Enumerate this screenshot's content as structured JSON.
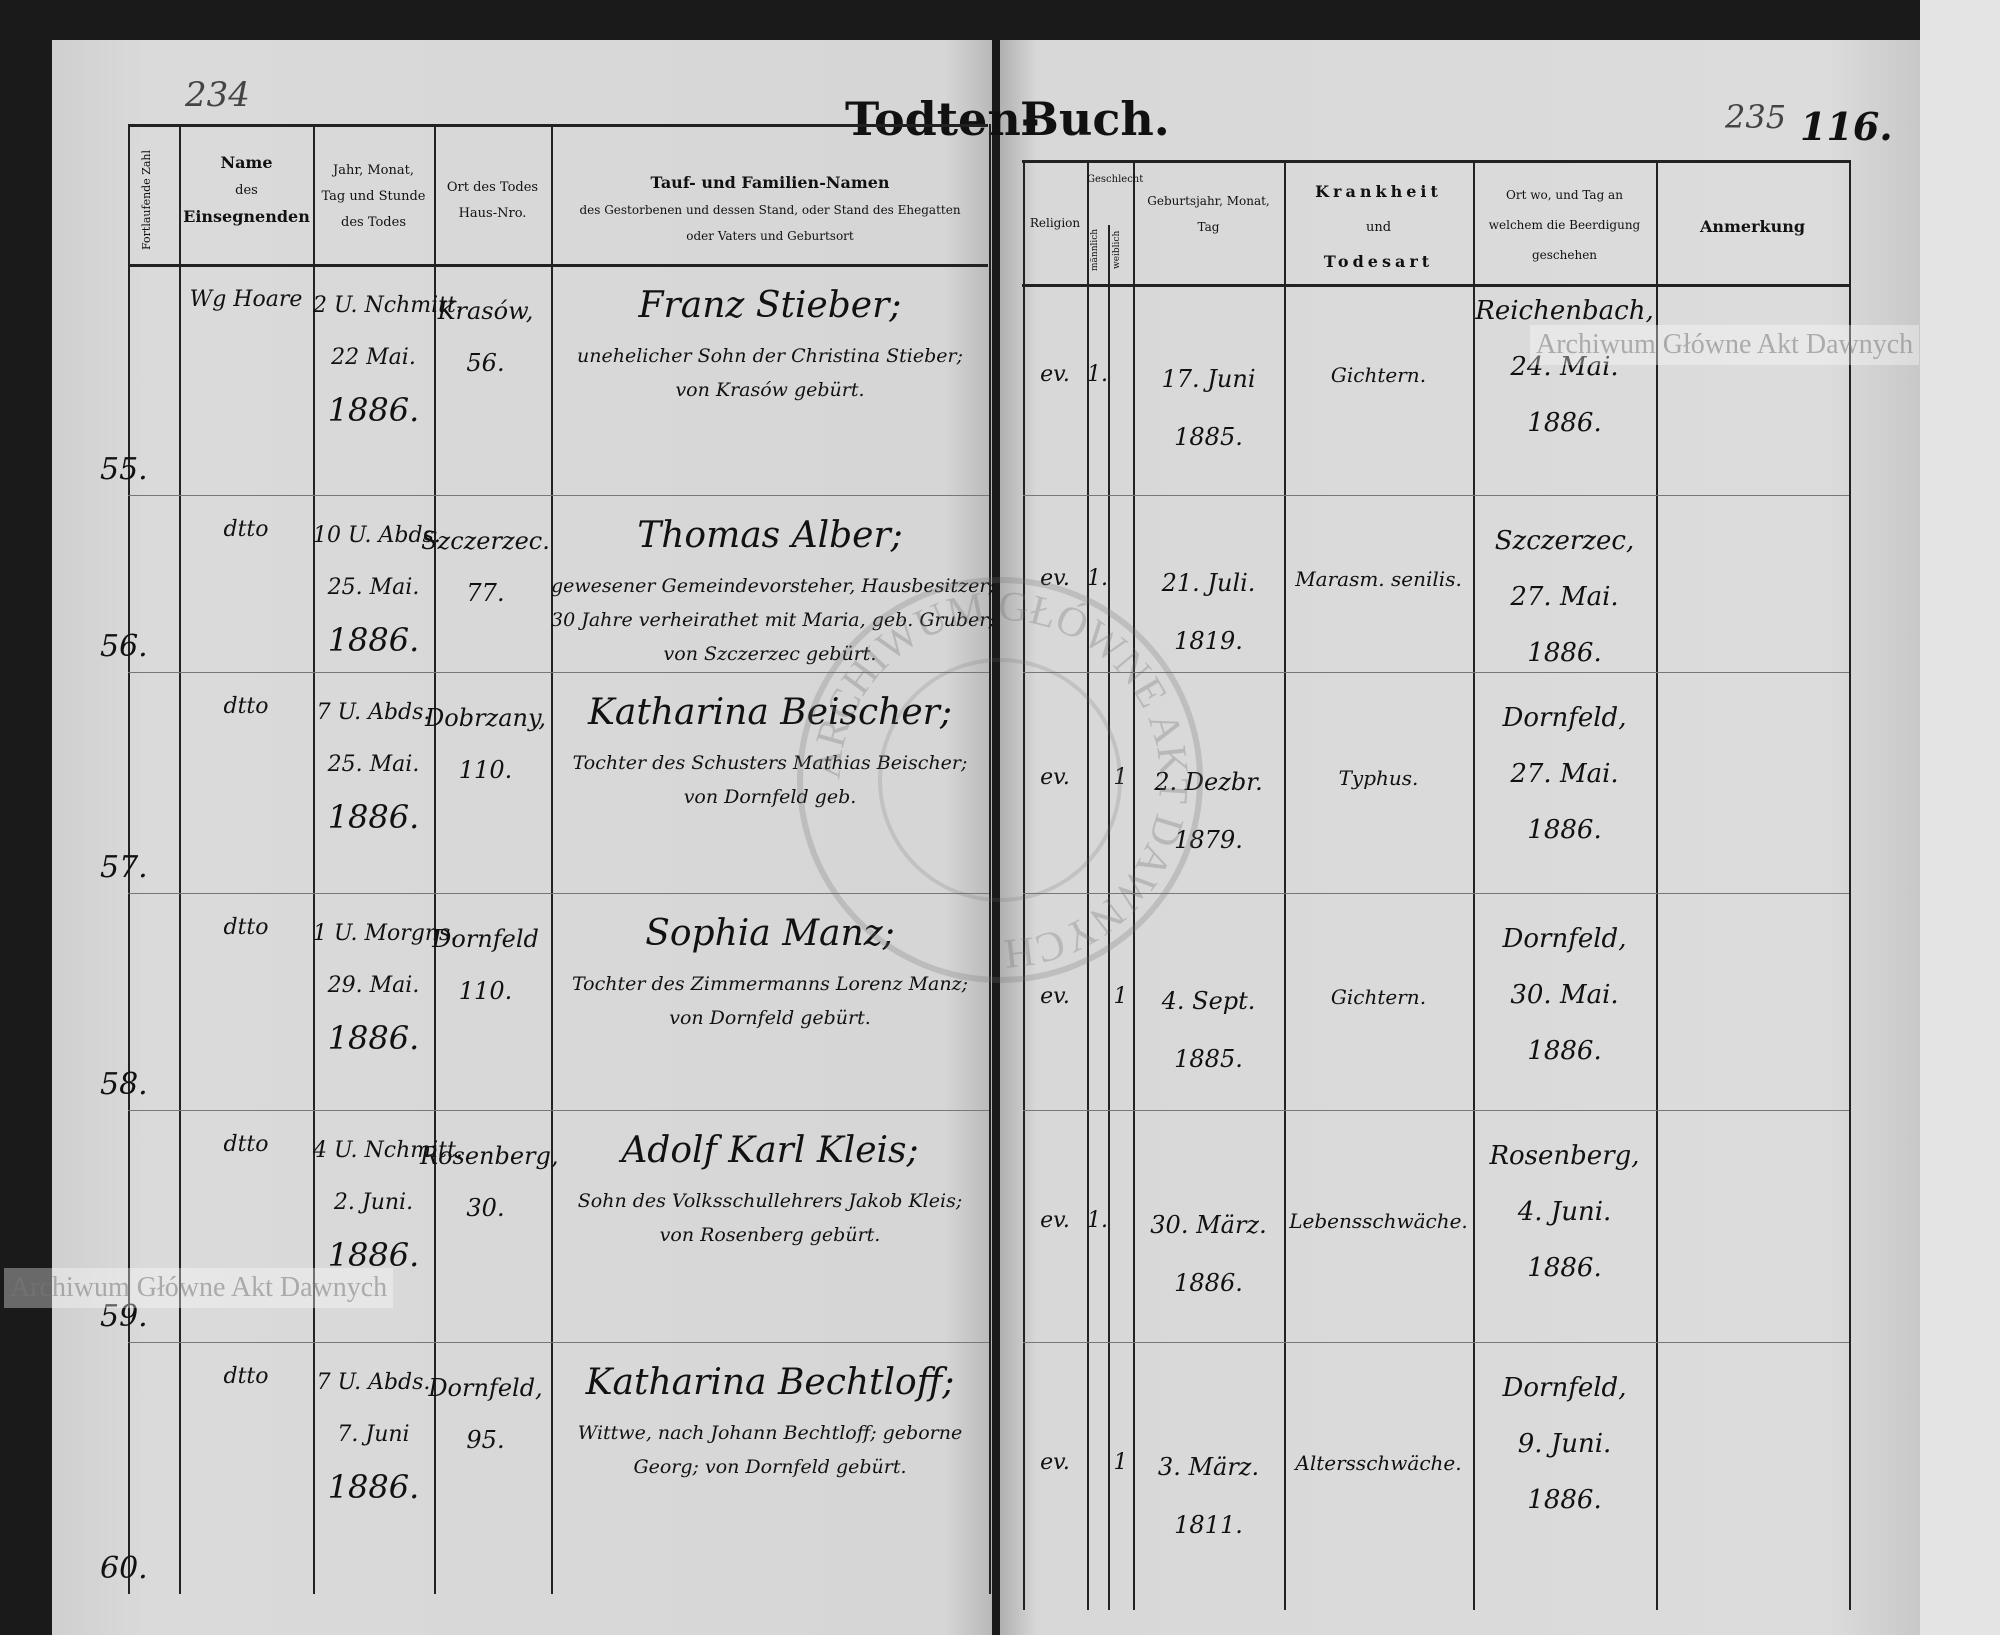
{
  "page_numbers": {
    "left": "234",
    "right": "235",
    "right_folio": "116."
  },
  "title": {
    "left": "Todten-",
    "right": "Buch."
  },
  "headers": {
    "number": "Fortlaufende Zahl",
    "officiant": [
      "Name",
      "des",
      "Einsegnenden"
    ],
    "death_date": [
      "Jahr, Monat,",
      "Tag und Stunde",
      "des Todes"
    ],
    "death_place": [
      "Ort des Todes",
      "Haus-Nro."
    ],
    "names": [
      "Tauf- und Familien-Namen",
      "des Gestorbenen und dessen Stand, oder Stand des Ehegatten",
      "oder Vaters und Geburtsort"
    ],
    "religion": "Religion",
    "sex": "Geschlecht",
    "male": "männlich",
    "female": "weiblich",
    "birth": [
      "Geburtsjahr, Monat,",
      "Tag"
    ],
    "disease": [
      "Krankheit",
      "und",
      "Todesart"
    ],
    "burial": [
      "Ort wo, und Tag an",
      "welchem die Beerdigung",
      "geschehen"
    ],
    "remarks": "Anmerkung"
  },
  "rows": [
    {
      "number": "55.",
      "officiant": "Wg Hoare",
      "death": [
        "2 U. Nchmitt.",
        "22 Mai.",
        "1886."
      ],
      "place": [
        "Krasów,",
        "56."
      ],
      "name": "Franz Stieber;",
      "desc": [
        "unehelicher Sohn der Christina Stieber;",
        "von Krasów gebürt."
      ],
      "religion": "ev.",
      "male": "1.",
      "female": "",
      "birth": [
        "17. Juni",
        "1885."
      ],
      "disease": "Gichtern.",
      "burial": [
        "Reichenbach,",
        "24. Mai.",
        "1886."
      ],
      "remarks": ""
    },
    {
      "number": "56.",
      "officiant": "dtto",
      "death": [
        "10 U. Abds.",
        "25. Mai.",
        "1886."
      ],
      "place": [
        "Szczerzec.",
        "77."
      ],
      "name": "Thomas Alber;",
      "desc": [
        "gewesener Gemeindevorsteher, Hausbesitzer;",
        "30 Jahre verheirathet mit Maria, geb. Gruber;",
        "von Szczerzec gebürt."
      ],
      "religion": "ev.",
      "male": "1.",
      "female": "",
      "birth": [
        "21. Juli.",
        "1819."
      ],
      "disease": "Marasm. senilis.",
      "burial": [
        "Szczerzec,",
        "27. Mai.",
        "1886."
      ],
      "remarks": ""
    },
    {
      "number": "57.",
      "officiant": "dtto",
      "death": [
        "7 U. Abds.",
        "25. Mai.",
        "1886."
      ],
      "place": [
        "Dobrzany,",
        "110."
      ],
      "name": "Katharina Beischer;",
      "desc": [
        "Tochter des Schusters Mathias Beischer;",
        "von Dornfeld geb."
      ],
      "religion": "ev.",
      "male": "",
      "female": "1",
      "birth": [
        "2. Dezbr.",
        "1879."
      ],
      "disease": "Typhus.",
      "burial": [
        "Dornfeld,",
        "27. Mai.",
        "1886."
      ],
      "remarks": ""
    },
    {
      "number": "58.",
      "officiant": "dtto",
      "death": [
        "1 U. Morgns.",
        "29. Mai.",
        "1886."
      ],
      "place": [
        "Dornfeld",
        "110."
      ],
      "name": "Sophia Manz;",
      "desc": [
        "Tochter des Zimmermanns Lorenz Manz;",
        "von Dornfeld gebürt."
      ],
      "religion": "ev.",
      "male": "",
      "female": "1",
      "birth": [
        "4. Sept.",
        "1885."
      ],
      "disease": "Gichtern.",
      "burial": [
        "Dornfeld,",
        "30. Mai.",
        "1886."
      ],
      "remarks": ""
    },
    {
      "number": "59.",
      "officiant": "dtto",
      "death": [
        "4 U. Nchmitt.",
        "2. Juni.",
        "1886."
      ],
      "place": [
        "Rosenberg,",
        "30."
      ],
      "name": "Adolf Karl Kleis;",
      "desc": [
        "Sohn des Volksschullehrers Jakob Kleis;",
        "von Rosenberg gebürt."
      ],
      "religion": "ev.",
      "male": "1.",
      "female": "",
      "birth": [
        "30. März.",
        "1886."
      ],
      "disease": "Lebensschwäche.",
      "burial": [
        "Rosenberg,",
        "4. Juni.",
        "1886."
      ],
      "remarks": ""
    },
    {
      "number": "60.",
      "officiant": "dtto",
      "death": [
        "7 U. Abds.",
        "7. Juni",
        "1886."
      ],
      "place": [
        "Dornfeld,",
        "95."
      ],
      "name": "Katharina Bechtloff;",
      "desc": [
        "Wittwe, nach Johann Bechtloff; geborne",
        "Georg; von Dornfeld gebürt."
      ],
      "religion": "ev.",
      "male": "",
      "female": "1",
      "birth": [
        "3. März.",
        "1811."
      ],
      "disease": "Altersschwäche.",
      "burial": [
        "Dornfeld,",
        "9. Juni.",
        "1886."
      ],
      "remarks": ""
    }
  ],
  "watermarks": {
    "text": "Archiwum Główne Akt Dawnych",
    "stamp": "ARCHIWUM GŁÓWNE AKT DAWNYCH"
  }
}
